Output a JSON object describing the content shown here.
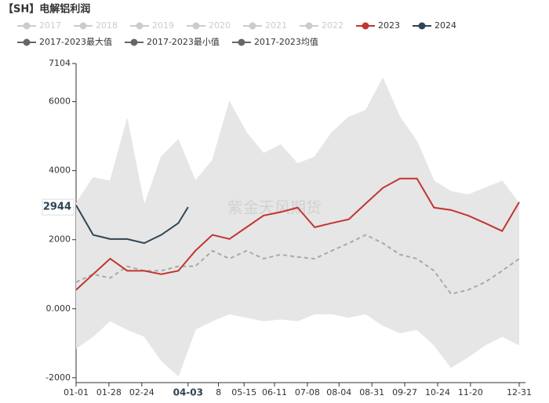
{
  "chart_data": {
    "type": "line",
    "title": "【SH】电解铝利润",
    "hidden_series": [
      "2017",
      "2018",
      "2019",
      "2020",
      "2021",
      "2022"
    ],
    "x": [
      0,
      14,
      28,
      42,
      56,
      70,
      84,
      98,
      112,
      126,
      140,
      154,
      168,
      182,
      196,
      210,
      224,
      238,
      252,
      266,
      280,
      294,
      308,
      322,
      336,
      350,
      364
    ],
    "xlim": [
      0,
      364
    ],
    "xticks": [
      {
        "value": 0,
        "label": "01-01"
      },
      {
        "value": 27,
        "label": "01-28"
      },
      {
        "value": 54,
        "label": "02-24"
      },
      {
        "value": 92,
        "label": "04-03"
      },
      {
        "value": 117,
        "label": "8"
      },
      {
        "value": 138,
        "label": "05-15"
      },
      {
        "value": 163,
        "label": "06-11"
      },
      {
        "value": 190,
        "label": "07-08"
      },
      {
        "value": 216,
        "label": "08-04"
      },
      {
        "value": 243,
        "label": "08-31"
      },
      {
        "value": 270,
        "label": "09-27"
      },
      {
        "value": 297,
        "label": "10-24"
      },
      {
        "value": 324,
        "label": "11-20"
      },
      {
        "value": 364,
        "label": "12-31"
      }
    ],
    "highlight_xtick": 3,
    "ylim": [
      -2140,
      7104
    ],
    "yticks": [
      -2000,
      {
        "value": 0,
        "label": "0.000"
      },
      2000,
      4000,
      6000,
      7104
    ],
    "pointer_y": 2944,
    "watermark": "紫金天风期货",
    "series": [
      {
        "name": "2023",
        "color": "#c23531",
        "style": "solid",
        "values": [
          545,
          1000,
          1450,
          1100,
          1100,
          1000,
          1100,
          1680,
          2140,
          2020,
          2360,
          2700,
          2800,
          2930,
          2360,
          2480,
          2590,
          3050,
          3500,
          3770,
          3770,
          2930,
          2860,
          2700,
          2480,
          2250,
          3090
        ]
      },
      {
        "name": "2024",
        "color": "#2f4554",
        "style": "solid",
        "x": [
          0,
          14,
          28,
          42,
          56,
          70,
          84,
          92
        ],
        "values": [
          3000,
          2140,
          2020,
          2020,
          1900,
          2140,
          2480,
          2944
        ]
      },
      {
        "name": "2017-2023最大值",
        "color": "#e6e6e6",
        "style": "band-top",
        "values": [
          3050,
          3800,
          3700,
          5500,
          3000,
          4400,
          4900,
          3700,
          4300,
          6000,
          5100,
          4500,
          4750,
          4200,
          4400,
          5100,
          5550,
          5750,
          6680,
          5550,
          4850,
          3700,
          3400,
          3300,
          3500,
          3700,
          3050
        ]
      },
      {
        "name": "2017-2023最小值",
        "color": "#e6e6e6",
        "style": "band-bottom",
        "values": [
          -1150,
          -800,
          -350,
          -600,
          -800,
          -1500,
          -1950,
          -600,
          -350,
          -150,
          -250,
          -350,
          -300,
          -350,
          -150,
          -150,
          -250,
          -150,
          -480,
          -700,
          -600,
          -1050,
          -1700,
          -1400,
          -1050,
          -800,
          -1050
        ]
      },
      {
        "name": "2017-2023均值",
        "color": "#a9a9a9",
        "style": "dashed",
        "values": [
          770,
          1000,
          890,
          1230,
          1100,
          1100,
          1230,
          1230,
          1680,
          1450,
          1680,
          1450,
          1570,
          1500,
          1450,
          1680,
          1900,
          2140,
          1900,
          1570,
          1450,
          1100,
          430,
          545,
          770,
          1100,
          1450
        ]
      }
    ]
  }
}
